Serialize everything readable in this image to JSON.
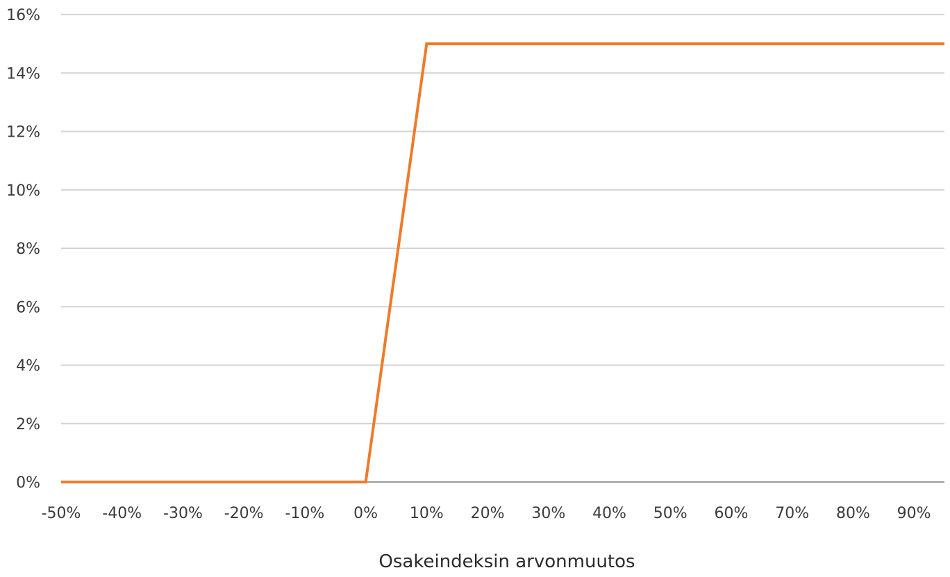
{
  "chart_data": {
    "type": "line",
    "title": "",
    "xlabel": "Osakeindeksin arvonmuutos",
    "ylabel": "",
    "x_tick_labels": [
      "-50%",
      "-40%",
      "-30%",
      "-20%",
      "-10%",
      "0%",
      "10%",
      "20%",
      "30%",
      "40%",
      "50%",
      "60%",
      "70%",
      "80%",
      "90%"
    ],
    "y_tick_labels": [
      "0%",
      "2%",
      "4%",
      "6%",
      "8%",
      "10%",
      "12%",
      "14%",
      "16%"
    ],
    "xlim": [
      -50,
      95
    ],
    "ylim": [
      0,
      16
    ],
    "grid": true,
    "legend": "none",
    "series": [
      {
        "color": "#f07a2a",
        "x": [
          -50,
          0,
          10,
          95
        ],
        "y": [
          0,
          0,
          15,
          15
        ]
      }
    ],
    "colors": {
      "grid": "#d3d3d3",
      "axis": "#9a9a9a",
      "line": "#f07a2a"
    }
  }
}
